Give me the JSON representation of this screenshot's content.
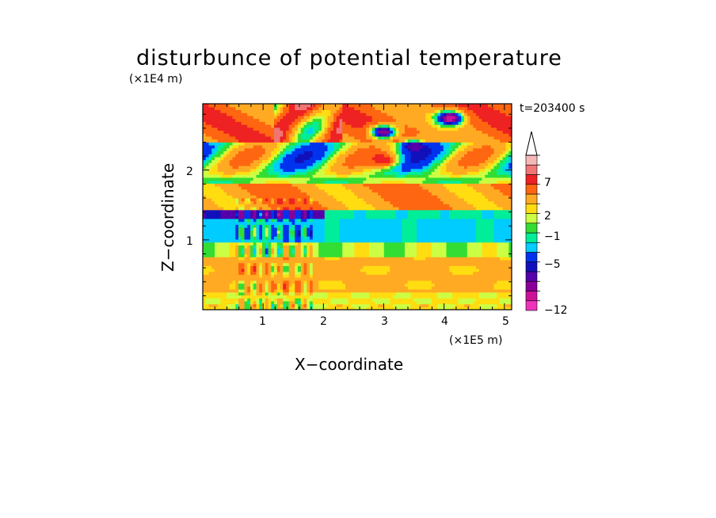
{
  "chart_data": {
    "type": "heatmap",
    "title": "disturbunce of potential temperature",
    "xlabel": "X−coordinate",
    "ylabel": "Z−coordinate",
    "x_scale_label": "(×1E5 m)",
    "y_scale_label": "(×1E4 m)",
    "time_label": "t=203400 s",
    "x_ticks": [
      "1",
      "2",
      "3",
      "4",
      "5"
    ],
    "y_ticks": [
      "1",
      "2"
    ],
    "xlim": [
      0,
      5.12
    ],
    "ylim": [
      0,
      2.95
    ],
    "colorbar": {
      "levels": [
        -12,
        -10,
        -8,
        -6,
        -5,
        -4,
        -2,
        -1,
        0,
        1,
        2,
        3,
        5,
        7,
        9,
        11
      ],
      "labels": [
        "−12",
        "−5",
        "−1",
        "2",
        "7"
      ],
      "colors": [
        "#ee33bb",
        "#cc1199",
        "#880099",
        "#5500aa",
        "#1111bb",
        "#0033ee",
        "#00ccff",
        "#00ee99",
        "#33dd33",
        "#ccff44",
        "#ffdd11",
        "#ffaa22",
        "#ff6611",
        "#ee2222",
        "#f07575",
        "#f4b8b8"
      ],
      "extend": "max"
    },
    "bands": [
      {
        "z_range": [
          0.0,
          0.25
        ],
        "value": 2.5,
        "description": "yellow/green noisy layer"
      },
      {
        "z_range": [
          0.25,
          0.75
        ],
        "value": 4,
        "description": "orange warm layer"
      },
      {
        "z_range": [
          0.75,
          0.95
        ],
        "value": 1.5,
        "description": "yellow/green"
      },
      {
        "z_range": [
          0.95,
          1.3
        ],
        "value": -1.5,
        "description": "cyan cool layer"
      },
      {
        "z_range": [
          1.3,
          1.45
        ],
        "value": -5,
        "description": "blue band (left)"
      },
      {
        "z_range": [
          1.45,
          1.8
        ],
        "value": 5,
        "description": "orange wavy layer"
      },
      {
        "z_range": [
          1.8,
          2.4
        ],
        "value": 0,
        "description": "mixed waves"
      },
      {
        "z_range": [
          2.4,
          2.95
        ],
        "value": 6,
        "description": "orange/red upper layer"
      }
    ],
    "features": [
      {
        "label": "max",
        "x": 3.0,
        "z": 2.15,
        "value": 9
      },
      {
        "label": "min",
        "x": 4.1,
        "z": 2.75,
        "value": -10
      },
      {
        "label": "min",
        "x": 3.0,
        "z": 2.55,
        "value": -8
      },
      {
        "label": "min",
        "x": 3.5,
        "z": 2.35,
        "value": -6
      }
    ]
  }
}
